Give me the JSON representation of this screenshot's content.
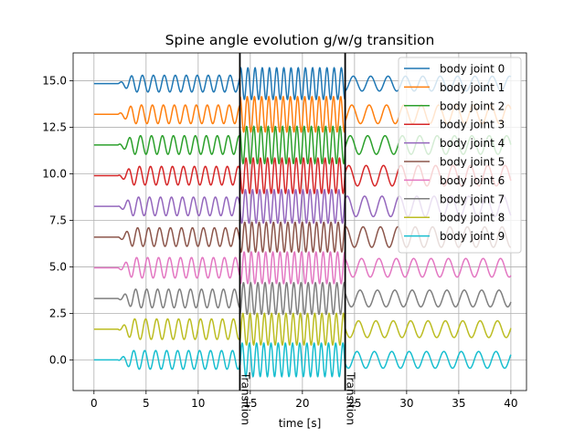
{
  "chart_data": {
    "type": "line",
    "title": "Spine angle evolution g/w/g transition",
    "xlabel": "time [s]",
    "ylabel": "",
    "xlim": [
      -2,
      41.5
    ],
    "ylim": [
      -1.65,
      16.5
    ],
    "xticks": [
      {
        "value": 0,
        "label": "0"
      },
      {
        "value": 5,
        "label": "5"
      },
      {
        "value": 10,
        "label": "10"
      },
      {
        "value": 15,
        "label": "15"
      },
      {
        "value": 20,
        "label": "20"
      },
      {
        "value": 25,
        "label": "25"
      },
      {
        "value": 30,
        "label": "30"
      },
      {
        "value": 35,
        "label": "35"
      },
      {
        "value": 40,
        "label": "40"
      }
    ],
    "yticks": [
      {
        "value": 0,
        "label": "0.0"
      },
      {
        "value": 2.5,
        "label": "2.5"
      },
      {
        "value": 5,
        "label": "5.0"
      },
      {
        "value": 7.5,
        "label": "7.5"
      },
      {
        "value": 10,
        "label": "10.0"
      },
      {
        "value": 12.5,
        "label": "12.5"
      },
      {
        "value": 15,
        "label": "15.0"
      }
    ],
    "grid": true,
    "legend_position": "top-right",
    "x_start": 0,
    "x_end": 40,
    "onset_time": 2.3,
    "series": [
      {
        "name": "body joint 0",
        "color": "#1f77b4",
        "offset": 14.85,
        "amplitude": [
          0.45,
          0.85,
          0.4
        ]
      },
      {
        "name": "body joint 1",
        "color": "#ff7f0e",
        "offset": 13.2,
        "amplitude": [
          0.5,
          0.95,
          0.5
        ]
      },
      {
        "name": "body joint 2",
        "color": "#2ca02c",
        "offset": 11.55,
        "amplitude": [
          0.5,
          1.0,
          0.5
        ]
      },
      {
        "name": "body joint 3",
        "color": "#d62728",
        "offset": 9.9,
        "amplitude": [
          0.5,
          0.95,
          0.55
        ]
      },
      {
        "name": "body joint 4",
        "color": "#9467bd",
        "offset": 8.25,
        "amplitude": [
          0.5,
          0.9,
          0.55
        ]
      },
      {
        "name": "body joint 5",
        "color": "#8c564b",
        "offset": 6.6,
        "amplitude": [
          0.5,
          0.8,
          0.55
        ]
      },
      {
        "name": "body joint 6",
        "color": "#e377c2",
        "offset": 4.95,
        "amplitude": [
          0.55,
          0.85,
          0.5
        ]
      },
      {
        "name": "body joint 7",
        "color": "#7f7f7f",
        "offset": 3.3,
        "amplitude": [
          0.5,
          0.85,
          0.45
        ]
      },
      {
        "name": "body joint 8",
        "color": "#bcbd22",
        "offset": 1.65,
        "amplitude": [
          0.55,
          0.85,
          0.45
        ]
      },
      {
        "name": "body joint 9",
        "color": "#17becf",
        "offset": 0.0,
        "amplitude": [
          0.5,
          0.9,
          0.45
        ]
      }
    ],
    "gait_phases": [
      {
        "start": 0,
        "end": 14,
        "frequency_hz": 0.95
      },
      {
        "start": 14,
        "end": 24.1,
        "frequency_hz": 1.45
      },
      {
        "start": 24.1,
        "end": 40,
        "frequency_hz": 0.6
      }
    ],
    "annotations": [
      {
        "x": 14.0,
        "text": "Transition"
      },
      {
        "x": 24.1,
        "text": "Transition"
      }
    ]
  }
}
